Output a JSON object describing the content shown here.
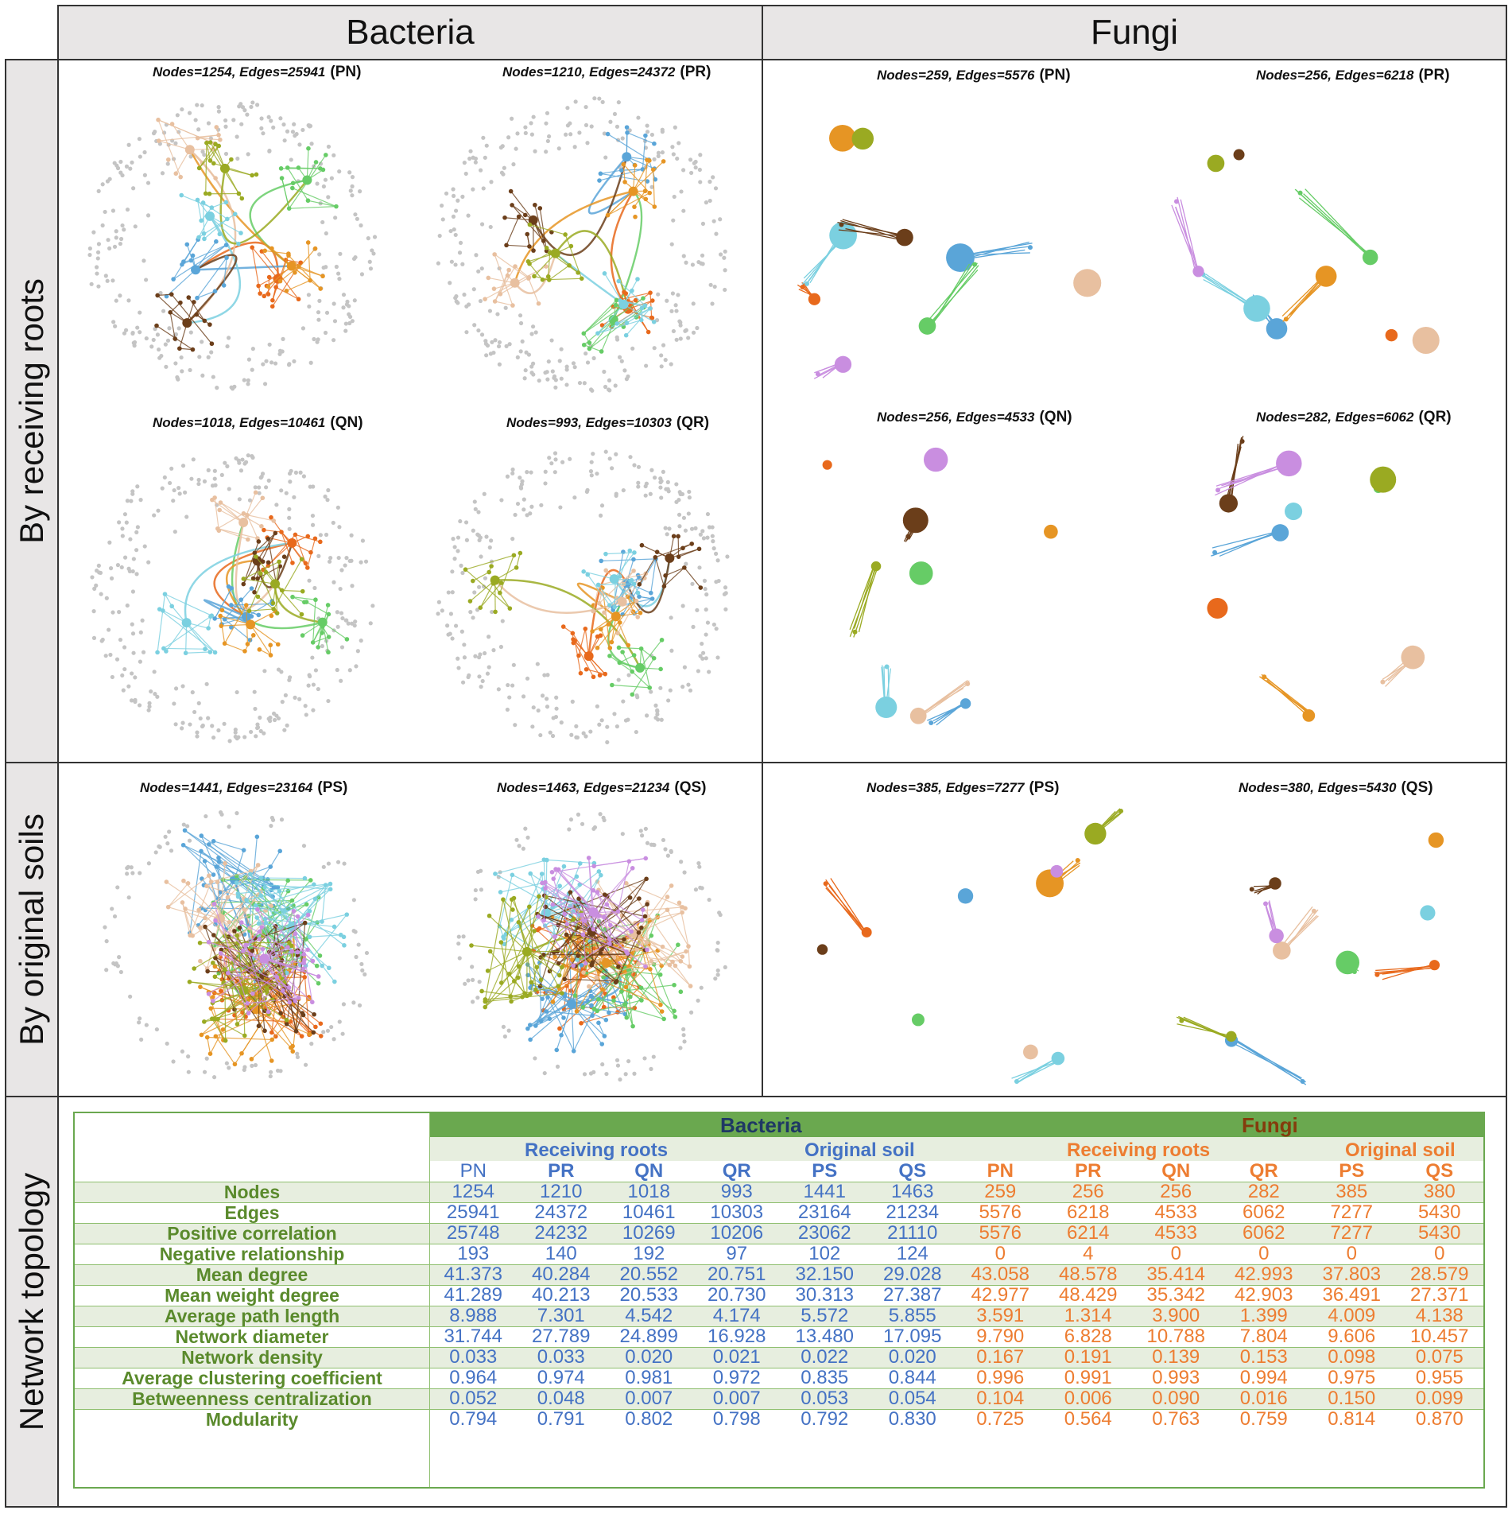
{
  "columns": {
    "bacteria": "Bacteria",
    "fungi": "Fungi"
  },
  "rows": {
    "receiving": "By receiving roots",
    "original": "By original soils",
    "topology": "Network topology"
  },
  "panels": {
    "b_pn": {
      "stats": "Nodes=1254, Edges=25941",
      "tag": "(PN)"
    },
    "b_pr": {
      "stats": "Nodes=1210, Edges=24372",
      "tag": "(PR)"
    },
    "b_qn": {
      "stats": "Nodes=1018, Edges=10461",
      "tag": "(QN)"
    },
    "b_qr": {
      "stats": "Nodes=993, Edges=10303",
      "tag": "(QR)"
    },
    "f_pn": {
      "stats": "Nodes=259, Edges=5576",
      "tag": "(PN)"
    },
    "f_pr": {
      "stats": "Nodes=256, Edges=6218",
      "tag": "(PR)"
    },
    "f_qn": {
      "stats": "Nodes=256, Edges=4533",
      "tag": "(QN)"
    },
    "f_qr": {
      "stats": "Nodes=282, Edges=6062",
      "tag": "(QR)"
    },
    "b_ps": {
      "stats": "Nodes=1441, Edges=23164",
      "tag": "(PS)"
    },
    "b_qs": {
      "stats": "Nodes=1463, Edges=21234",
      "tag": "(QS)"
    },
    "f_ps": {
      "stats": "Nodes=385, Edges=7277",
      "tag": "(PS)"
    },
    "f_qs": {
      "stats": "Nodes=380, Edges=5430",
      "tag": "(QS)"
    }
  },
  "module_colors": [
    "#e8691c",
    "#5aa5d8",
    "#66cc66",
    "#e69524",
    "#e8c0a0",
    "#7bd0e0",
    "#6b3e1a",
    "#9aaa22",
    "#c98ee0",
    "#c0c0c0"
  ],
  "table": {
    "groups": {
      "bacteria": "Bacteria",
      "fungi": "Fungi"
    },
    "subgroups": {
      "b_roots": "Receiving roots",
      "b_soil": "Original soil",
      "f_roots": "Receiving roots",
      "f_soil": "Original soil"
    },
    "samples": [
      "PN",
      "PR",
      "QN",
      "QR",
      "PS",
      "QS",
      "PN",
      "PR",
      "QN",
      "QR",
      "PS",
      "QS"
    ],
    "colors": {
      "bacteria_text": "#4472c4",
      "fungi_text": "#ed7d31",
      "row_label": "#5a8a2c",
      "header_bar": "#6aa84f",
      "band": "#e7eedf",
      "fungi_title": "#843c0c",
      "bacteria_title": "#1f3864"
    },
    "rows": [
      {
        "label": "Nodes",
        "values": [
          "1254",
          "1210",
          "1018",
          "993",
          "1441",
          "1463",
          "259",
          "256",
          "256",
          "282",
          "385",
          "380"
        ]
      },
      {
        "label": "Edges",
        "values": [
          "25941",
          "24372",
          "10461",
          "10303",
          "23164",
          "21234",
          "5576",
          "6218",
          "4533",
          "6062",
          "7277",
          "5430"
        ]
      },
      {
        "label": "Positive correlation",
        "values": [
          "25748",
          "24232",
          "10269",
          "10206",
          "23062",
          "21110",
          "5576",
          "6214",
          "4533",
          "6062",
          "7277",
          "5430"
        ]
      },
      {
        "label": "Negative relationship",
        "values": [
          "193",
          "140",
          "192",
          "97",
          "102",
          "124",
          "0",
          "4",
          "0",
          "0",
          "0",
          "0"
        ]
      },
      {
        "label": "Mean degree",
        "values": [
          "41.373",
          "40.284",
          "20.552",
          "20.751",
          "32.150",
          "29.028",
          "43.058",
          "48.578",
          "35.414",
          "42.993",
          "37.803",
          "28.579"
        ]
      },
      {
        "label": "Mean weight degree",
        "values": [
          "41.289",
          "40.213",
          "20.533",
          "20.730",
          "30.313",
          "27.387",
          "42.977",
          "48.429",
          "35.342",
          "42.903",
          "36.491",
          "27.371"
        ]
      },
      {
        "label": "Average path length",
        "values": [
          "8.988",
          "7.301",
          "4.542",
          "4.174",
          "5.572",
          "5.855",
          "3.591",
          "1.314",
          "3.900",
          "1.399",
          "4.009",
          "4.138"
        ]
      },
      {
        "label": "Network diameter",
        "values": [
          "31.744",
          "27.789",
          "24.899",
          "16.928",
          "13.480",
          "17.095",
          "9.790",
          "6.828",
          "10.788",
          "7.804",
          "9.606",
          "10.457"
        ]
      },
      {
        "label": "Network density",
        "values": [
          "0.033",
          "0.033",
          "0.020",
          "0.021",
          "0.022",
          "0.020",
          "0.167",
          "0.191",
          "0.139",
          "0.153",
          "0.098",
          "0.075"
        ]
      },
      {
        "label": "Average clustering coefficient",
        "values": [
          "0.964",
          "0.974",
          "0.981",
          "0.972",
          "0.835",
          "0.844",
          "0.996",
          "0.991",
          "0.993",
          "0.994",
          "0.975",
          "0.955"
        ]
      },
      {
        "label": "Betweenness centralization",
        "values": [
          "0.052",
          "0.048",
          "0.007",
          "0.007",
          "0.053",
          "0.054",
          "0.104",
          "0.006",
          "0.090",
          "0.016",
          "0.150",
          "0.099"
        ]
      },
      {
        "label": "Modularity",
        "values": [
          "0.794",
          "0.791",
          "0.802",
          "0.798",
          "0.792",
          "0.830",
          "0.725",
          "0.564",
          "0.763",
          "0.759",
          "0.814",
          "0.870"
        ]
      }
    ]
  }
}
